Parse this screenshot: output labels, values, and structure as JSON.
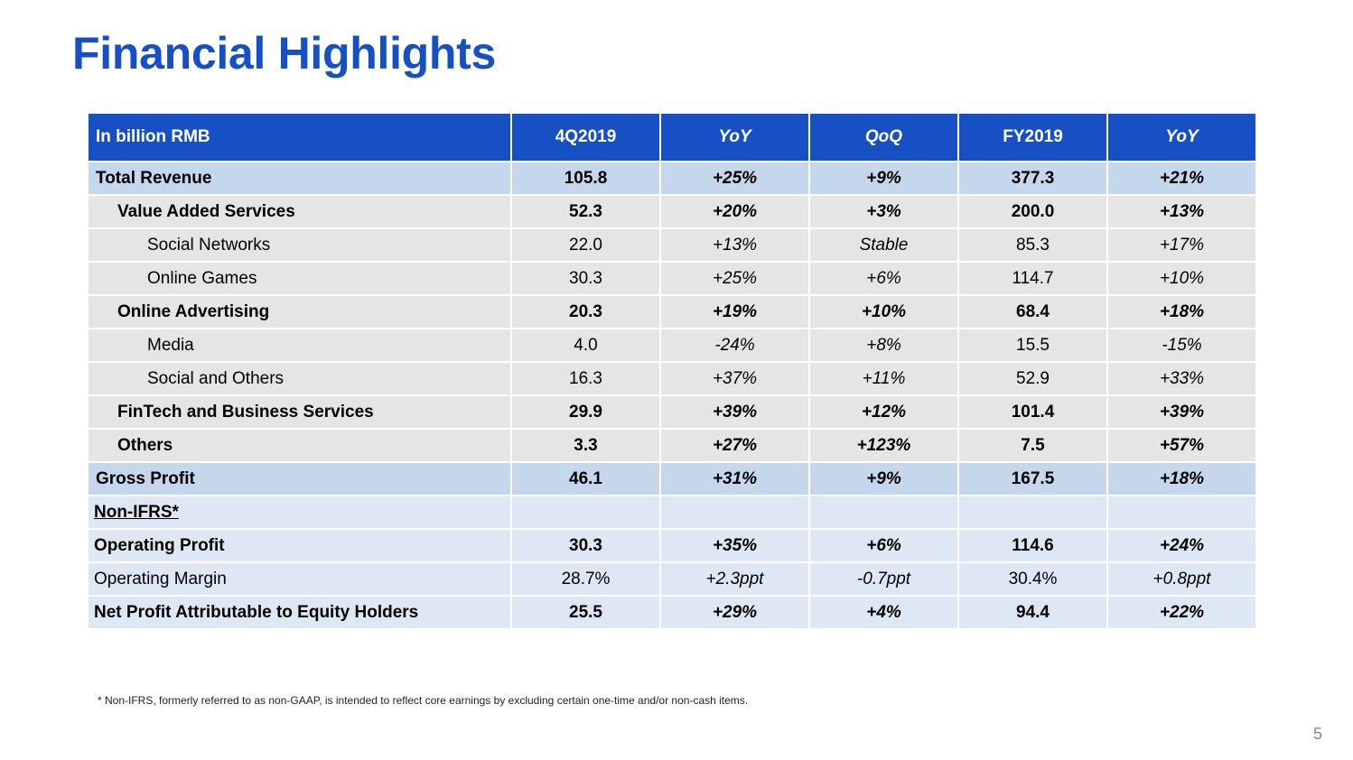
{
  "title": "Financial Highlights",
  "table": {
    "headers": [
      "In billion RMB",
      "4Q2019",
      "YoY",
      "QoQ",
      "FY2019",
      "YoY"
    ],
    "rows": [
      {
        "label": "Total Revenue",
        "q4": "105.8",
        "q4_yoy": "+25%",
        "qoq": "+9%",
        "fy": "377.3",
        "fy_yoy": "+21%"
      },
      {
        "label": "Value Added Services",
        "q4": "52.3",
        "q4_yoy": "+20%",
        "qoq": "+3%",
        "fy": "200.0",
        "fy_yoy": "+13%"
      },
      {
        "label": "Social Networks",
        "q4": "22.0",
        "q4_yoy": "+13%",
        "qoq": "Stable",
        "fy": "85.3",
        "fy_yoy": "+17%"
      },
      {
        "label": "Online Games",
        "q4": "30.3",
        "q4_yoy": "+25%",
        "qoq": "+6%",
        "fy": "114.7",
        "fy_yoy": "+10%"
      },
      {
        "label": "Online Advertising",
        "q4": "20.3",
        "q4_yoy": "+19%",
        "qoq": "+10%",
        "fy": "68.4",
        "fy_yoy": "+18%"
      },
      {
        "label": "Media",
        "q4": "4.0",
        "q4_yoy": "-24%",
        "qoq": "+8%",
        "fy": "15.5",
        "fy_yoy": "-15%"
      },
      {
        "label": "Social and Others",
        "q4": "16.3",
        "q4_yoy": "+37%",
        "qoq": "+11%",
        "fy": "52.9",
        "fy_yoy": "+33%"
      },
      {
        "label": "FinTech and Business Services",
        "q4": "29.9",
        "q4_yoy": "+39%",
        "qoq": "+12%",
        "fy": "101.4",
        "fy_yoy": "+39%"
      },
      {
        "label": "Others",
        "q4": "3.3",
        "q4_yoy": "+27%",
        "qoq": "+123%",
        "fy": "7.5",
        "fy_yoy": "+57%"
      },
      {
        "label": "Gross Profit",
        "q4": "46.1",
        "q4_yoy": "+31%",
        "qoq": "+9%",
        "fy": "167.5",
        "fy_yoy": "+18%"
      },
      {
        "label": "Non-IFRS*"
      },
      {
        "label": "Operating Profit",
        "q4": "30.3",
        "q4_yoy": "+35%",
        "qoq": "+6%",
        "fy": "114.6",
        "fy_yoy": "+24%"
      },
      {
        "label": "Operating Margin",
        "q4": "28.7%",
        "q4_yoy": "+2.3ppt",
        "qoq": "-0.7ppt",
        "fy": "30.4%",
        "fy_yoy": "+0.8ppt"
      },
      {
        "label": "Net Profit Attributable to Equity Holders",
        "q4": "25.5",
        "q4_yoy": "+29%",
        "qoq": "+4%",
        "fy": "94.4",
        "fy_yoy": "+22%"
      }
    ]
  },
  "footnote": "* Non-IFRS, formerly referred to as non-GAAP, is intended to reflect core earnings by excluding certain one-time and/or non-cash items.",
  "page_number": "5",
  "colors": {
    "title": "#1550c8",
    "header_bg": "#1750c5",
    "highlight_row_bg": "#c4d7ec",
    "segment_row_bg": "#e5e5e5",
    "non_ifrs_row_bg": "#dde8f4"
  }
}
